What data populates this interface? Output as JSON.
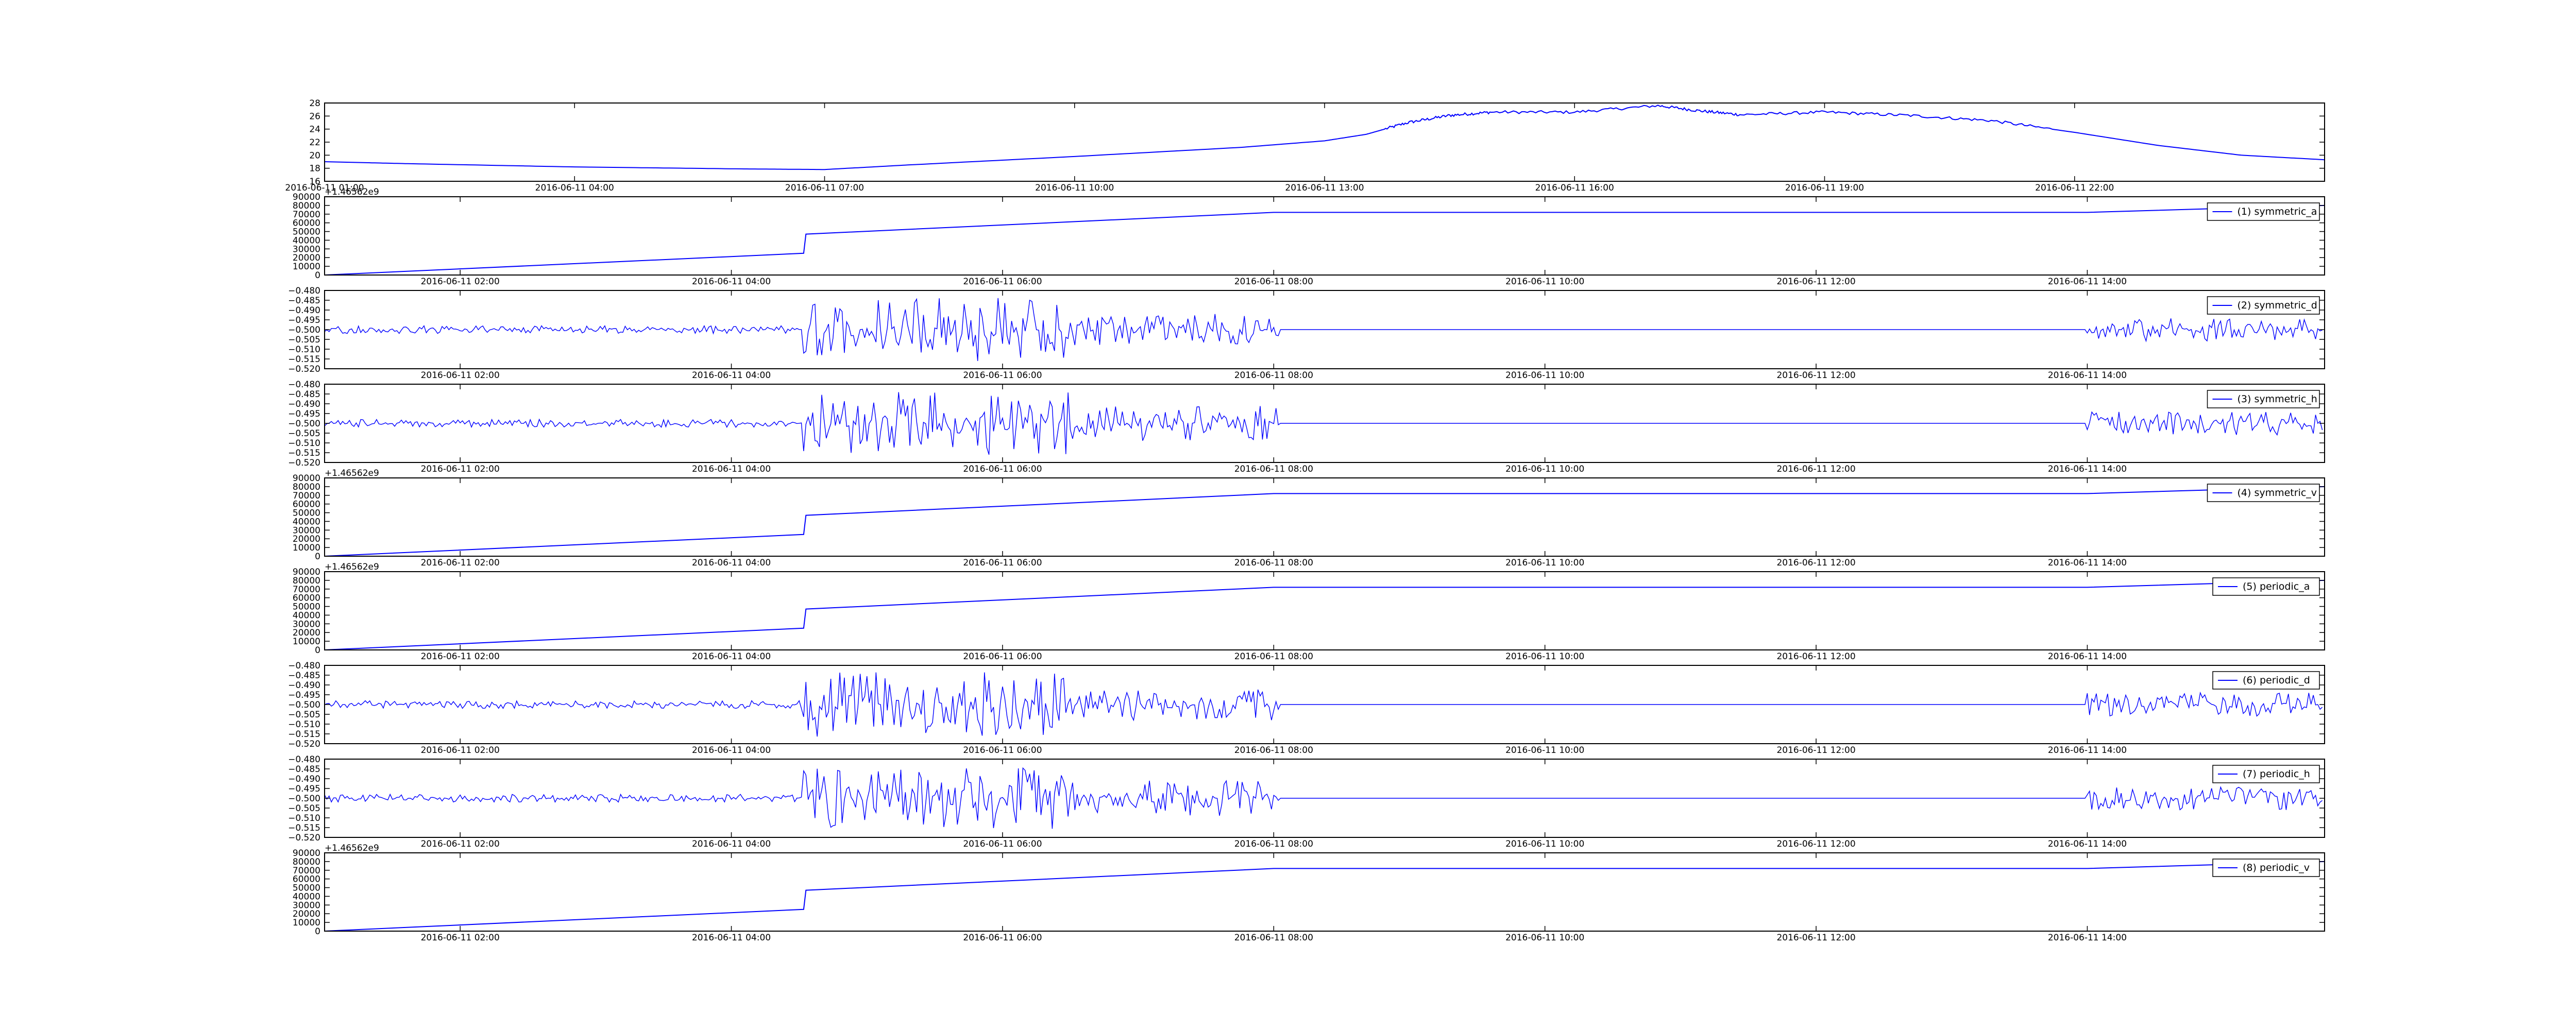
{
  "figure": {
    "background": "#ffffff",
    "line_color": "#0000ff",
    "axes_color": "#000000"
  },
  "chart_data": [
    {
      "type": "line",
      "title": "",
      "xlabel": "",
      "ylabel": "",
      "ylim": [
        16,
        28
      ],
      "y_ticks": [
        "16",
        "18",
        "20",
        "22",
        "24",
        "26",
        "28"
      ],
      "x_range": [
        "2016-06-11 01:00",
        "2016-06-12 01:00"
      ],
      "x_tick_labels": [
        "2016-06-11 01:00",
        "2016-06-11 04:00",
        "2016-06-11 07:00",
        "2016-06-11 10:00",
        "2016-06-11 13:00",
        "2016-06-11 16:00",
        "2016-06-11 19:00",
        "2016-06-11 22:00"
      ],
      "legend": null,
      "series": [
        {
          "x": [
            "2016-06-11 01:00",
            "2016-06-11 02:00",
            "2016-06-11 04:00",
            "2016-06-11 06:00",
            "2016-06-11 07:00",
            "2016-06-11 08:00",
            "2016-06-11 10:00",
            "2016-06-11 12:00",
            "2016-06-11 13:00",
            "2016-06-11 13:30",
            "2016-06-11 14:00",
            "2016-06-11 14:30",
            "2016-06-11 15:00",
            "2016-06-11 16:00",
            "2016-06-11 17:00",
            "2016-06-11 17:30",
            "2016-06-11 18:00",
            "2016-06-11 19:00",
            "2016-06-11 20:00",
            "2016-06-11 21:00",
            "2016-06-11 22:00",
            "2016-06-11 23:00",
            "2016-06-12 00:00",
            "2016-06-12 01:00"
          ],
          "values": [
            19.0,
            18.7,
            18.2,
            17.9,
            17.8,
            18.5,
            19.8,
            21.2,
            22.2,
            23.2,
            25.0,
            26.1,
            26.6,
            26.6,
            27.6,
            26.8,
            26.2,
            26.6,
            26.1,
            25.3,
            23.5,
            21.5,
            20.0,
            19.3
          ]
        }
      ]
    },
    {
      "type": "line",
      "title": "",
      "xlabel": "",
      "ylabel": "",
      "offset_label": "+1.46562e9",
      "ylim": [
        0,
        90000
      ],
      "y_ticks": [
        "0",
        "10000",
        "20000",
        "30000",
        "40000",
        "50000",
        "60000",
        "70000",
        "80000",
        "90000"
      ],
      "x_range": [
        "2016-06-11 01:00",
        "2016-06-11 15:45"
      ],
      "x_tick_labels": [
        "2016-06-11 02:00",
        "2016-06-11 04:00",
        "2016-06-11 06:00",
        "2016-06-11 08:00",
        "2016-06-11 10:00",
        "2016-06-11 12:00",
        "2016-06-11 14:00"
      ],
      "legend": {
        "label": "(1) symmetric_a",
        "position": "upper right"
      },
      "series": [
        {
          "name": "(1) symmetric_a",
          "x": [
            "2016-06-11 01:00",
            "2016-06-11 04:32",
            "2016-06-11 04:33",
            "2016-06-11 08:00",
            "2016-06-11 14:00",
            "2016-06-11 15:45"
          ],
          "values": [
            0,
            25000,
            47000,
            72000,
            72000,
            80000
          ]
        }
      ]
    },
    {
      "type": "line",
      "title": "",
      "xlabel": "",
      "ylabel": "",
      "ylim": [
        -0.52,
        -0.48
      ],
      "y_ticks": [
        "−0.520",
        "−0.515",
        "−0.510",
        "−0.505",
        "−0.500",
        "−0.495",
        "−0.490",
        "−0.485",
        "−0.480"
      ],
      "x_range": [
        "2016-06-11 01:00",
        "2016-06-11 15:45"
      ],
      "x_tick_labels": [
        "2016-06-11 02:00",
        "2016-06-11 04:00",
        "2016-06-11 06:00",
        "2016-06-11 08:00",
        "2016-06-11 10:00",
        "2016-06-11 12:00",
        "2016-06-11 14:00"
      ],
      "legend": {
        "label": "(2) symmetric_d",
        "position": "upper right"
      },
      "noise_pattern": "down",
      "series": [
        {
          "name": "(2) symmetric_d",
          "baseline": -0.5,
          "segments": [
            {
              "start": "2016-06-11 01:00",
              "end": "2016-06-11 04:32",
              "amplitude": 0.002
            },
            {
              "start": "2016-06-11 04:32",
              "end": "2016-06-11 06:30",
              "amplitude": 0.017
            },
            {
              "start": "2016-06-11 06:30",
              "end": "2016-06-11 08:03",
              "amplitude": 0.008
            },
            {
              "start": "2016-06-11 08:03",
              "end": "2016-06-11 14:00",
              "amplitude": 0
            },
            {
              "start": "2016-06-11 14:00",
              "end": "2016-06-11 15:45",
              "amplitude": 0.006
            }
          ]
        }
      ]
    },
    {
      "type": "line",
      "title": "",
      "xlabel": "",
      "ylabel": "",
      "ylim": [
        -0.52,
        -0.48
      ],
      "y_ticks": [
        "−0.520",
        "−0.515",
        "−0.510",
        "−0.505",
        "−0.500",
        "−0.495",
        "−0.490",
        "−0.485",
        "−0.480"
      ],
      "x_range": [
        "2016-06-11 01:00",
        "2016-06-11 15:45"
      ],
      "x_tick_labels": [
        "2016-06-11 02:00",
        "2016-06-11 04:00",
        "2016-06-11 06:00",
        "2016-06-11 08:00",
        "2016-06-11 10:00",
        "2016-06-11 12:00",
        "2016-06-11 14:00"
      ],
      "legend": {
        "label": "(3) symmetric_h",
        "position": "upper right"
      },
      "noise_pattern": "up",
      "series": [
        {
          "name": "(3) symmetric_h",
          "baseline": -0.5,
          "segments": [
            {
              "start": "2016-06-11 01:00",
              "end": "2016-06-11 04:32",
              "amplitude": 0.002
            },
            {
              "start": "2016-06-11 04:32",
              "end": "2016-06-11 06:30",
              "amplitude": 0.016
            },
            {
              "start": "2016-06-11 06:30",
              "end": "2016-06-11 08:03",
              "amplitude": 0.009
            },
            {
              "start": "2016-06-11 08:03",
              "end": "2016-06-11 14:00",
              "amplitude": 0
            },
            {
              "start": "2016-06-11 14:00",
              "end": "2016-06-11 15:45",
              "amplitude": 0.006
            }
          ]
        }
      ]
    },
    {
      "type": "line",
      "title": "",
      "xlabel": "",
      "ylabel": "",
      "offset_label": "+1.46562e9",
      "ylim": [
        0,
        90000
      ],
      "y_ticks": [
        "0",
        "10000",
        "20000",
        "30000",
        "40000",
        "50000",
        "60000",
        "70000",
        "80000",
        "90000"
      ],
      "x_range": [
        "2016-06-11 01:00",
        "2016-06-11 15:45"
      ],
      "x_tick_labels": [
        "2016-06-11 02:00",
        "2016-06-11 04:00",
        "2016-06-11 06:00",
        "2016-06-11 08:00",
        "2016-06-11 10:00",
        "2016-06-11 12:00",
        "2016-06-11 14:00"
      ],
      "legend": {
        "label": "(4) symmetric_v",
        "position": "upper right"
      },
      "series": [
        {
          "name": "(4) symmetric_v",
          "x": [
            "2016-06-11 01:00",
            "2016-06-11 04:32",
            "2016-06-11 04:33",
            "2016-06-11 08:00",
            "2016-06-11 14:00",
            "2016-06-11 15:45"
          ],
          "values": [
            0,
            25000,
            47000,
            72000,
            72000,
            80000
          ]
        }
      ]
    },
    {
      "type": "line",
      "title": "",
      "xlabel": "",
      "ylabel": "",
      "offset_label": "+1.46562e9",
      "ylim": [
        0,
        90000
      ],
      "y_ticks": [
        "0",
        "10000",
        "20000",
        "30000",
        "40000",
        "50000",
        "60000",
        "70000",
        "80000",
        "90000"
      ],
      "x_range": [
        "2016-06-11 01:00",
        "2016-06-11 15:45"
      ],
      "x_tick_labels": [
        "2016-06-11 02:00",
        "2016-06-11 04:00",
        "2016-06-11 06:00",
        "2016-06-11 08:00",
        "2016-06-11 10:00",
        "2016-06-11 12:00",
        "2016-06-11 14:00"
      ],
      "legend": {
        "label": "(5) periodic_a",
        "position": "upper right"
      },
      "series": [
        {
          "name": "(5) periodic_a",
          "x": [
            "2016-06-11 01:00",
            "2016-06-11 04:32",
            "2016-06-11 04:33",
            "2016-06-11 08:00",
            "2016-06-11 14:00",
            "2016-06-11 15:45"
          ],
          "values": [
            0,
            25000,
            47000,
            72000,
            72000,
            80000
          ]
        }
      ]
    },
    {
      "type": "line",
      "title": "",
      "xlabel": "",
      "ylabel": "",
      "ylim": [
        -0.52,
        -0.48
      ],
      "y_ticks": [
        "−0.520",
        "−0.515",
        "−0.510",
        "−0.505",
        "−0.500",
        "−0.495",
        "−0.490",
        "−0.485",
        "−0.480"
      ],
      "x_range": [
        "2016-06-11 01:00",
        "2016-06-11 15:45"
      ],
      "x_tick_labels": [
        "2016-06-11 02:00",
        "2016-06-11 04:00",
        "2016-06-11 06:00",
        "2016-06-11 08:00",
        "2016-06-11 10:00",
        "2016-06-11 12:00",
        "2016-06-11 14:00"
      ],
      "legend": {
        "label": "(6) periodic_d",
        "position": "upper right"
      },
      "noise_pattern": "down",
      "series": [
        {
          "name": "(6) periodic_d",
          "baseline": -0.5,
          "segments": [
            {
              "start": "2016-06-11 01:00",
              "end": "2016-06-11 04:32",
              "amplitude": 0.002
            },
            {
              "start": "2016-06-11 04:32",
              "end": "2016-06-11 06:30",
              "amplitude": 0.017
            },
            {
              "start": "2016-06-11 06:30",
              "end": "2016-06-11 08:03",
              "amplitude": 0.008
            },
            {
              "start": "2016-06-11 08:03",
              "end": "2016-06-11 14:00",
              "amplitude": 0
            },
            {
              "start": "2016-06-11 14:00",
              "end": "2016-06-11 15:45",
              "amplitude": 0.006
            }
          ]
        }
      ]
    },
    {
      "type": "line",
      "title": "",
      "xlabel": "",
      "ylabel": "",
      "ylim": [
        -0.52,
        -0.48
      ],
      "y_ticks": [
        "−0.520",
        "−0.515",
        "−0.510",
        "−0.505",
        "−0.500",
        "−0.495",
        "−0.490",
        "−0.485",
        "−0.480"
      ],
      "x_range": [
        "2016-06-11 01:00",
        "2016-06-11 15:45"
      ],
      "x_tick_labels": [
        "2016-06-11 02:00",
        "2016-06-11 04:00",
        "2016-06-11 06:00",
        "2016-06-11 08:00",
        "2016-06-11 10:00",
        "2016-06-11 12:00",
        "2016-06-11 14:00"
      ],
      "legend": {
        "label": "(7) periodic_h",
        "position": "upper right"
      },
      "noise_pattern": "up",
      "series": [
        {
          "name": "(7) periodic_h",
          "baseline": -0.5,
          "segments": [
            {
              "start": "2016-06-11 01:00",
              "end": "2016-06-11 04:32",
              "amplitude": 0.002
            },
            {
              "start": "2016-06-11 04:32",
              "end": "2016-06-11 06:30",
              "amplitude": 0.016
            },
            {
              "start": "2016-06-11 06:30",
              "end": "2016-06-11 08:03",
              "amplitude": 0.009
            },
            {
              "start": "2016-06-11 08:03",
              "end": "2016-06-11 14:00",
              "amplitude": 0
            },
            {
              "start": "2016-06-11 14:00",
              "end": "2016-06-11 15:45",
              "amplitude": 0.006
            }
          ]
        }
      ]
    },
    {
      "type": "line",
      "title": "",
      "xlabel": "",
      "ylabel": "",
      "offset_label": "+1.46562e9",
      "ylim": [
        0,
        90000
      ],
      "y_ticks": [
        "0",
        "10000",
        "20000",
        "30000",
        "40000",
        "50000",
        "60000",
        "70000",
        "80000",
        "90000"
      ],
      "x_range": [
        "2016-06-11 01:00",
        "2016-06-11 15:45"
      ],
      "x_tick_labels": [
        "2016-06-11 02:00",
        "2016-06-11 04:00",
        "2016-06-11 06:00",
        "2016-06-11 08:00",
        "2016-06-11 10:00",
        "2016-06-11 12:00",
        "2016-06-11 14:00"
      ],
      "legend": {
        "label": "(8) periodic_v",
        "position": "upper right"
      },
      "series": [
        {
          "name": "(8) periodic_v",
          "x": [
            "2016-06-11 01:00",
            "2016-06-11 04:32",
            "2016-06-11 04:33",
            "2016-06-11 08:00",
            "2016-06-11 14:00",
            "2016-06-11 15:45"
          ],
          "values": [
            0,
            25000,
            47000,
            72000,
            72000,
            80000
          ]
        }
      ]
    }
  ]
}
